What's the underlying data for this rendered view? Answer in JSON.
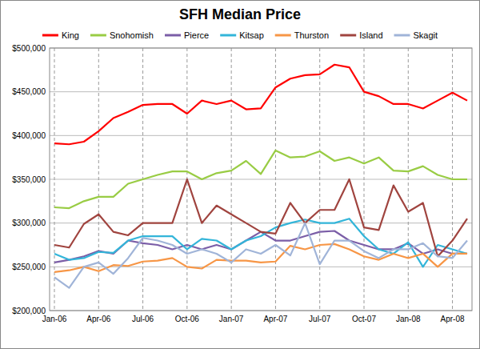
{
  "chart_data": {
    "type": "line",
    "title": "SFH Median Price",
    "categories": [
      "Jan-06",
      null,
      null,
      "Apr-06",
      null,
      null,
      "Jul-06",
      null,
      null,
      "Oct-06",
      null,
      null,
      "Jan-07",
      null,
      null,
      "Apr-07",
      null,
      null,
      "Jul-07",
      null,
      null,
      "Oct-07",
      null,
      null,
      "Jan-08",
      null,
      null,
      "Apr-08",
      null
    ],
    "series": [
      {
        "name": "King",
        "color": "#ff0000",
        "values": [
          391000,
          390000,
          393000,
          405000,
          420000,
          427000,
          435000,
          436000,
          436000,
          425000,
          440000,
          436000,
          440000,
          430000,
          431000,
          455000,
          465000,
          469000,
          470000,
          481000,
          478000,
          450000,
          445000,
          436000,
          436000,
          431000,
          440000,
          449000,
          440000
        ]
      },
      {
        "name": "Snohomish",
        "color": "#99cc44",
        "values": [
          318000,
          317000,
          325000,
          330000,
          330000,
          345000,
          350000,
          355000,
          359000,
          359000,
          350000,
          357000,
          360000,
          371000,
          356000,
          383000,
          375000,
          376000,
          382000,
          371000,
          375000,
          368000,
          375000,
          360000,
          359000,
          365000,
          355000,
          350000,
          350000
        ]
      },
      {
        "name": "Pierce",
        "color": "#7b5ea7",
        "values": [
          255000,
          258000,
          262000,
          268000,
          265000,
          280000,
          277000,
          275000,
          270000,
          275000,
          270000,
          275000,
          270000,
          280000,
          290000,
          280000,
          280000,
          285000,
          290000,
          291000,
          280000,
          275000,
          270000,
          270000,
          277000,
          265000,
          270000,
          265000,
          265000
        ]
      },
      {
        "name": "Kitsap",
        "color": "#33b5d9",
        "values": [
          265000,
          258000,
          260000,
          267000,
          266000,
          280000,
          285000,
          285000,
          285000,
          270000,
          282000,
          280000,
          270000,
          280000,
          285000,
          295000,
          300000,
          304000,
          300000,
          300000,
          305000,
          285000,
          270000,
          265000,
          278000,
          250000,
          275000,
          270000,
          265000
        ]
      },
      {
        "name": "Thurston",
        "color": "#f79646",
        "values": [
          244000,
          246000,
          250000,
          245000,
          252000,
          251000,
          256000,
          257000,
          260000,
          250000,
          248000,
          258000,
          257000,
          257000,
          255000,
          256000,
          274000,
          270000,
          275000,
          276000,
          270000,
          262000,
          258000,
          265000,
          260000,
          265000,
          250000,
          265000,
          265000
        ]
      },
      {
        "name": "Island",
        "color": "#a0443f",
        "values": [
          275000,
          272000,
          299000,
          310000,
          290000,
          286000,
          300000,
          300000,
          300000,
          350000,
          300000,
          320000,
          310000,
          300000,
          290000,
          288000,
          323000,
          300000,
          315000,
          315000,
          350000,
          295000,
          292000,
          343000,
          313000,
          323000,
          262000,
          280000,
          305000
        ]
      },
      {
        "name": "Skagit",
        "color": "#a0b4d8",
        "values": [
          238000,
          226000,
          250000,
          255000,
          242000,
          260000,
          283000,
          280000,
          275000,
          265000,
          270000,
          265000,
          255000,
          270000,
          265000,
          275000,
          263000,
          300000,
          253000,
          280000,
          280000,
          268000,
          260000,
          270000,
          270000,
          277000,
          262000,
          260000,
          280000
        ]
      }
    ],
    "ylim": [
      200000,
      500000
    ],
    "yticks": [
      {
        "value": 200000,
        "label": "$200,000"
      },
      {
        "value": 250000,
        "label": "$250,000"
      },
      {
        "value": 300000,
        "label": "$300,000"
      },
      {
        "value": 350000,
        "label": "$350,000"
      },
      {
        "value": 400000,
        "label": "$400,000"
      },
      {
        "value": 450000,
        "label": "$450,000"
      },
      {
        "value": 500000,
        "label": "$500,000"
      }
    ],
    "grid": true,
    "legend": "top",
    "line_style": "solid"
  }
}
